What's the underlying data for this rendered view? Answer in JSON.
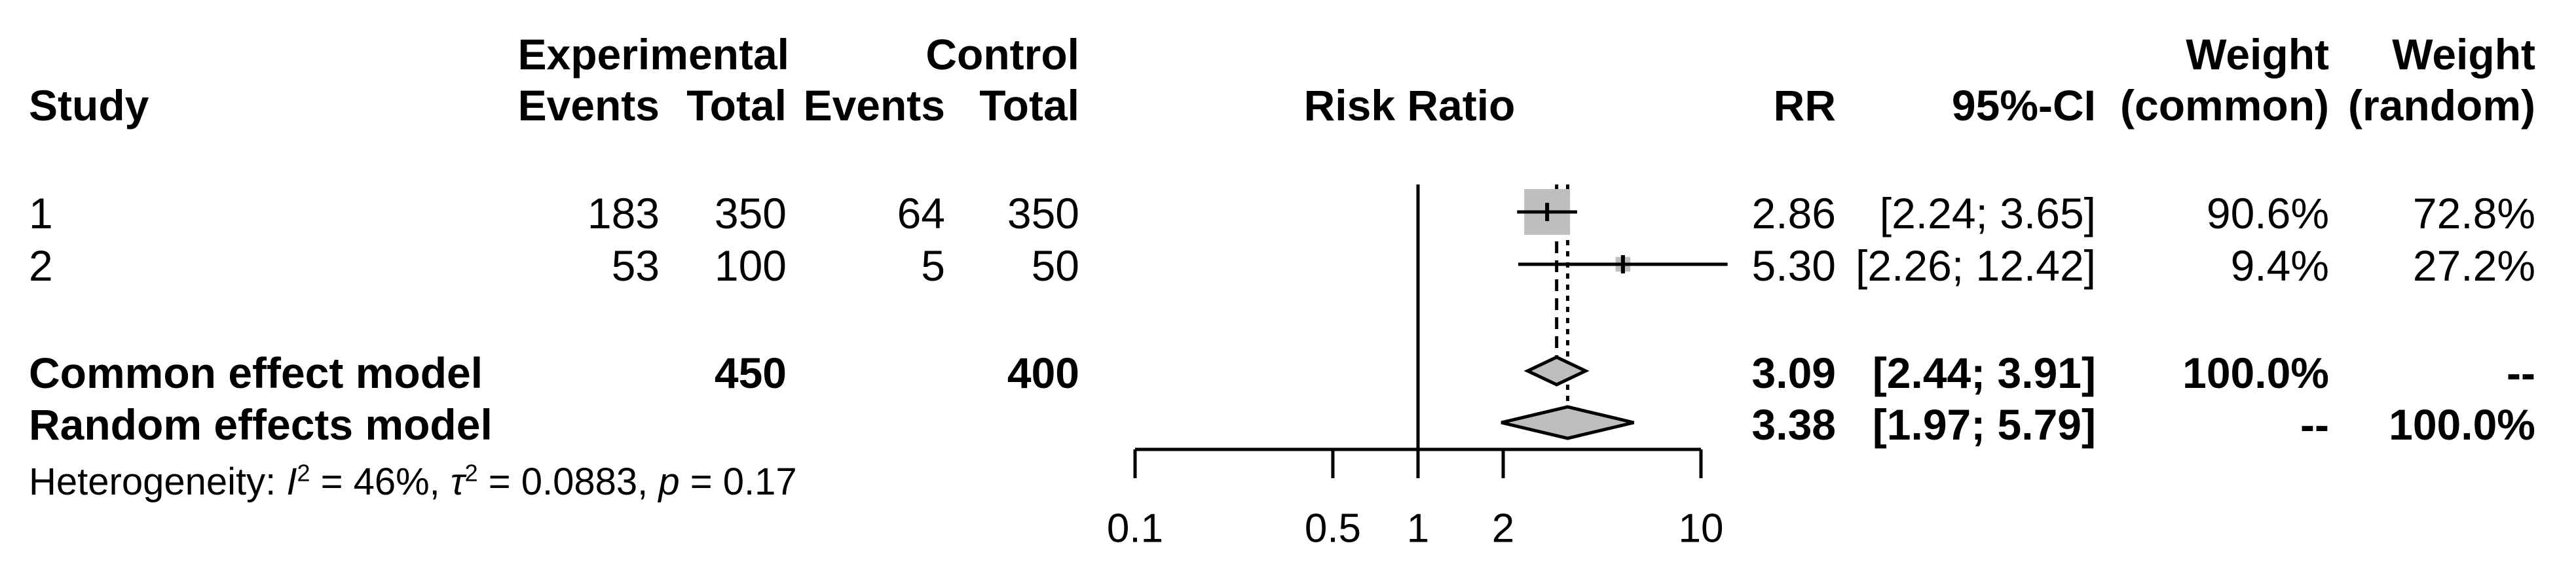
{
  "header": {
    "row1": {
      "experimental": "Experimental",
      "control": "Control",
      "weight_common": "Weight",
      "weight_random": "Weight"
    },
    "row2": {
      "study": "Study",
      "events_exp": "Events",
      "total_exp": "Total",
      "events_ctrl": "Events",
      "total_ctrl": "Total",
      "risk_ratio": "Risk Ratio",
      "rr": "RR",
      "ci": "95%-CI",
      "w_common": "(common)",
      "w_random": "(random)"
    }
  },
  "chart_data": {
    "type": "forest",
    "effect_measure": "Risk Ratio",
    "x_scale": "log10",
    "axis": {
      "min": 0.1,
      "max": 10,
      "ref_line": 1,
      "ticks": [
        {
          "v": 0.1,
          "label": "0.1"
        },
        {
          "v": 0.5,
          "label": "0.5"
        },
        {
          "v": 1,
          "label": "1"
        },
        {
          "v": 2,
          "label": "2"
        },
        {
          "v": 10,
          "label": "10"
        }
      ]
    },
    "studies": [
      {
        "id": "1",
        "events_exp": "183",
        "total_exp": "350",
        "events_ctrl": "64",
        "total_ctrl": "350",
        "rr": 2.86,
        "ci_low": 2.24,
        "ci_high": 3.65,
        "rr_label": "2.86",
        "ci_label": "[2.24; 3.65]",
        "weight_common": "90.6%",
        "weight_random": "72.8%",
        "weight_common_pct": 90.6
      },
      {
        "id": "2",
        "events_exp": "53",
        "total_exp": "100",
        "events_ctrl": "5",
        "total_ctrl": "50",
        "rr": 5.3,
        "ci_low": 2.26,
        "ci_high": 12.42,
        "rr_label": "5.30",
        "ci_label": "[2.26; 12.42]",
        "weight_common": "9.4%",
        "weight_random": "27.2%",
        "weight_common_pct": 9.4
      }
    ],
    "summaries": [
      {
        "label": "Common effect model",
        "total_exp": "450",
        "total_ctrl": "400",
        "rr": 3.09,
        "ci_low": 2.44,
        "ci_high": 3.91,
        "rr_label": "3.09",
        "ci_label": "[2.44; 3.91]",
        "weight_common": "100.0%",
        "weight_random": "--",
        "line_style": "dashed"
      },
      {
        "label": "Random effects model",
        "rr": 3.38,
        "ci_low": 1.97,
        "ci_high": 5.79,
        "rr_label": "3.38",
        "ci_label": "[1.97; 5.79]",
        "weight_common": "--",
        "weight_random": "100.0%",
        "line_style": "dotted"
      }
    ],
    "heterogeneity": {
      "prefix": "Heterogeneity: ",
      "i_sym": "I",
      "i_sup": "2",
      "i_rest": " = 46%, ",
      "tau_sym": "τ",
      "tau_sup": "2",
      "tau_rest": " = 0.0883, ",
      "p_sym": "p",
      "p_rest": " = 0.17"
    },
    "colors": {
      "marker_fill": "#bebebe",
      "line": "#000000",
      "text": "#000000",
      "background": "#ffffff"
    }
  }
}
